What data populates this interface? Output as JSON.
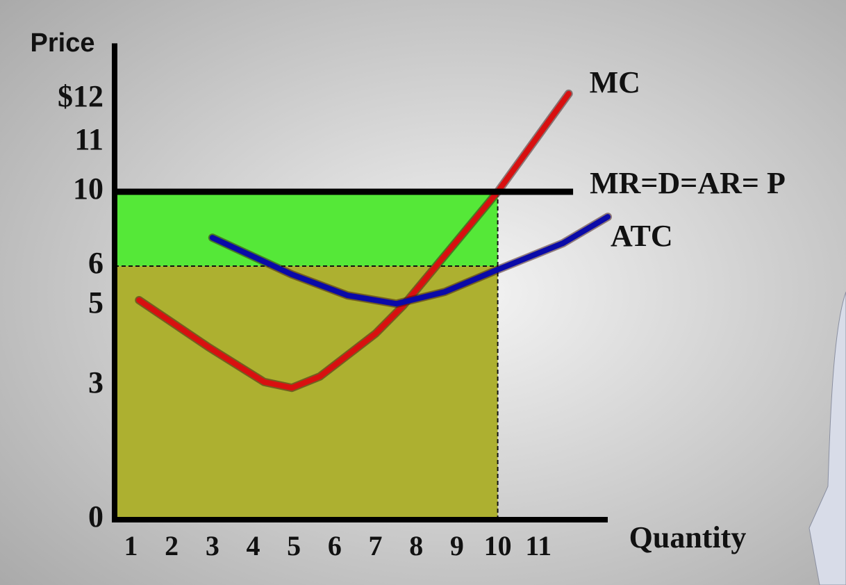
{
  "chart_data": {
    "type": "line",
    "y_label": "Price",
    "x_label": "Quantity",
    "xlim": [
      0.6,
      12.7
    ],
    "ylim": [
      0,
      13.3
    ],
    "xticks": [
      1,
      2,
      3,
      4,
      5,
      6,
      7,
      8,
      9,
      10,
      11
    ],
    "yticks": [
      0,
      3,
      5,
      6,
      10,
      11,
      {
        "value": 12,
        "label": "$12"
      }
    ],
    "areas": [
      {
        "x": [
          0.6,
          10
        ],
        "y": [
          6,
          10
        ],
        "color": "#55e838"
      },
      {
        "x": [
          0.6,
          10
        ],
        "y": [
          0,
          6
        ],
        "color": "#adb030"
      }
    ],
    "series": [
      {
        "name": "MC",
        "color": "#d81010",
        "x": [
          1.2,
          2.91,
          4.27,
          4.95,
          5.64,
          7.0,
          7.68,
          8.36,
          10,
          11.74
        ],
        "values": [
          5.14,
          3.96,
          3.09,
          2.95,
          3.23,
          4.3,
          5,
          5.84,
          10,
          12.13
        ]
      },
      {
        "name": "MR=D=AR= P",
        "color": "#000000",
        "x": [
          0.6,
          11.85
        ],
        "values": [
          10,
          10
        ]
      },
      {
        "name": "ATC",
        "color": "#0a0aa8",
        "x": [
          3.0,
          4.95,
          6.32,
          7.51,
          8.7,
          10,
          11.6,
          12.7
        ],
        "values": [
          7.53,
          5.79,
          5.26,
          5.05,
          5.35,
          5.91,
          7.23,
          8.65
        ]
      }
    ]
  }
}
